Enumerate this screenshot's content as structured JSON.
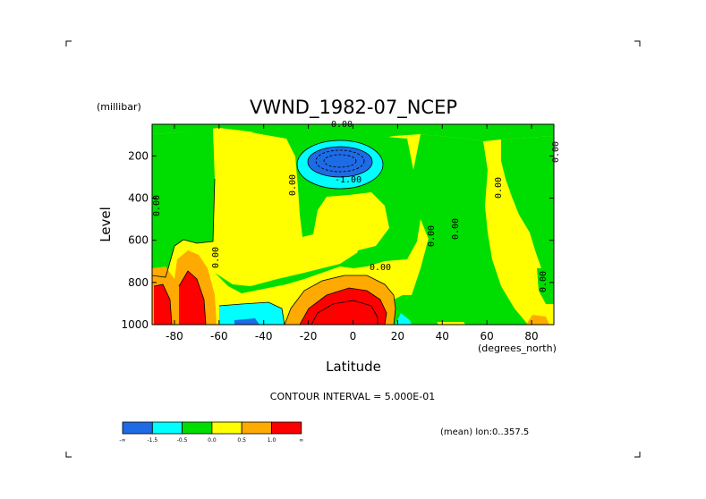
{
  "chart_data": {
    "type": "heatmap",
    "title": "VWND_1982-07_NCEP",
    "xlabel": "Latitude",
    "ylabel": "Level",
    "x_units": "(degrees_north)",
    "y_units": "(millibar)",
    "xlim": [
      -90,
      90
    ],
    "ylim": [
      1000,
      50
    ],
    "y_axis_inverted": true,
    "x_ticks": [
      -80,
      -60,
      -40,
      -20,
      0,
      20,
      40,
      60,
      80
    ],
    "y_ticks": [
      200,
      400,
      600,
      800,
      1000
    ],
    "footer_interval": "CONTOUR INTERVAL = 5.000E-01",
    "footer_mean": "(mean) lon:0..357.5",
    "colorbar": {
      "bounds": [
        "-∞",
        "-1.5",
        "-0.5",
        "0.0",
        "0.5",
        "1.0",
        "∞"
      ],
      "colors": [
        "#1e6be6",
        "#00ffff",
        "#00dd00",
        "#ffff00",
        "#ffaa00",
        "#ff0000"
      ],
      "labels": [
        "-∞",
        "-1.5",
        "-0.5",
        "0.0",
        "0.5",
        "1.0",
        "∞"
      ]
    },
    "contour_labels": [
      "0.00",
      "-1.00",
      "0.00",
      "0.00",
      "0.00",
      "0.00",
      "0.00",
      "0.00",
      "0.00",
      "0.00",
      "0.00"
    ],
    "features": [
      {
        "name": "upper-level negative core",
        "lat_center": -8,
        "level_center": 200,
        "class": "below -1.5"
      },
      {
        "name": "low-level positive core",
        "lat_center": -5,
        "level_center": 950,
        "class": "above 1.0"
      },
      {
        "name": "southern low-level positive cores",
        "lat_range": [
          -90,
          -65
        ],
        "level_range": [
          700,
          1000
        ],
        "class": "above 1.0"
      },
      {
        "name": "southern surface negative",
        "lat_range": [
          -60,
          -32
        ],
        "level_range": [
          880,
          1000
        ],
        "class": "-1.5 to -0.5"
      }
    ]
  }
}
